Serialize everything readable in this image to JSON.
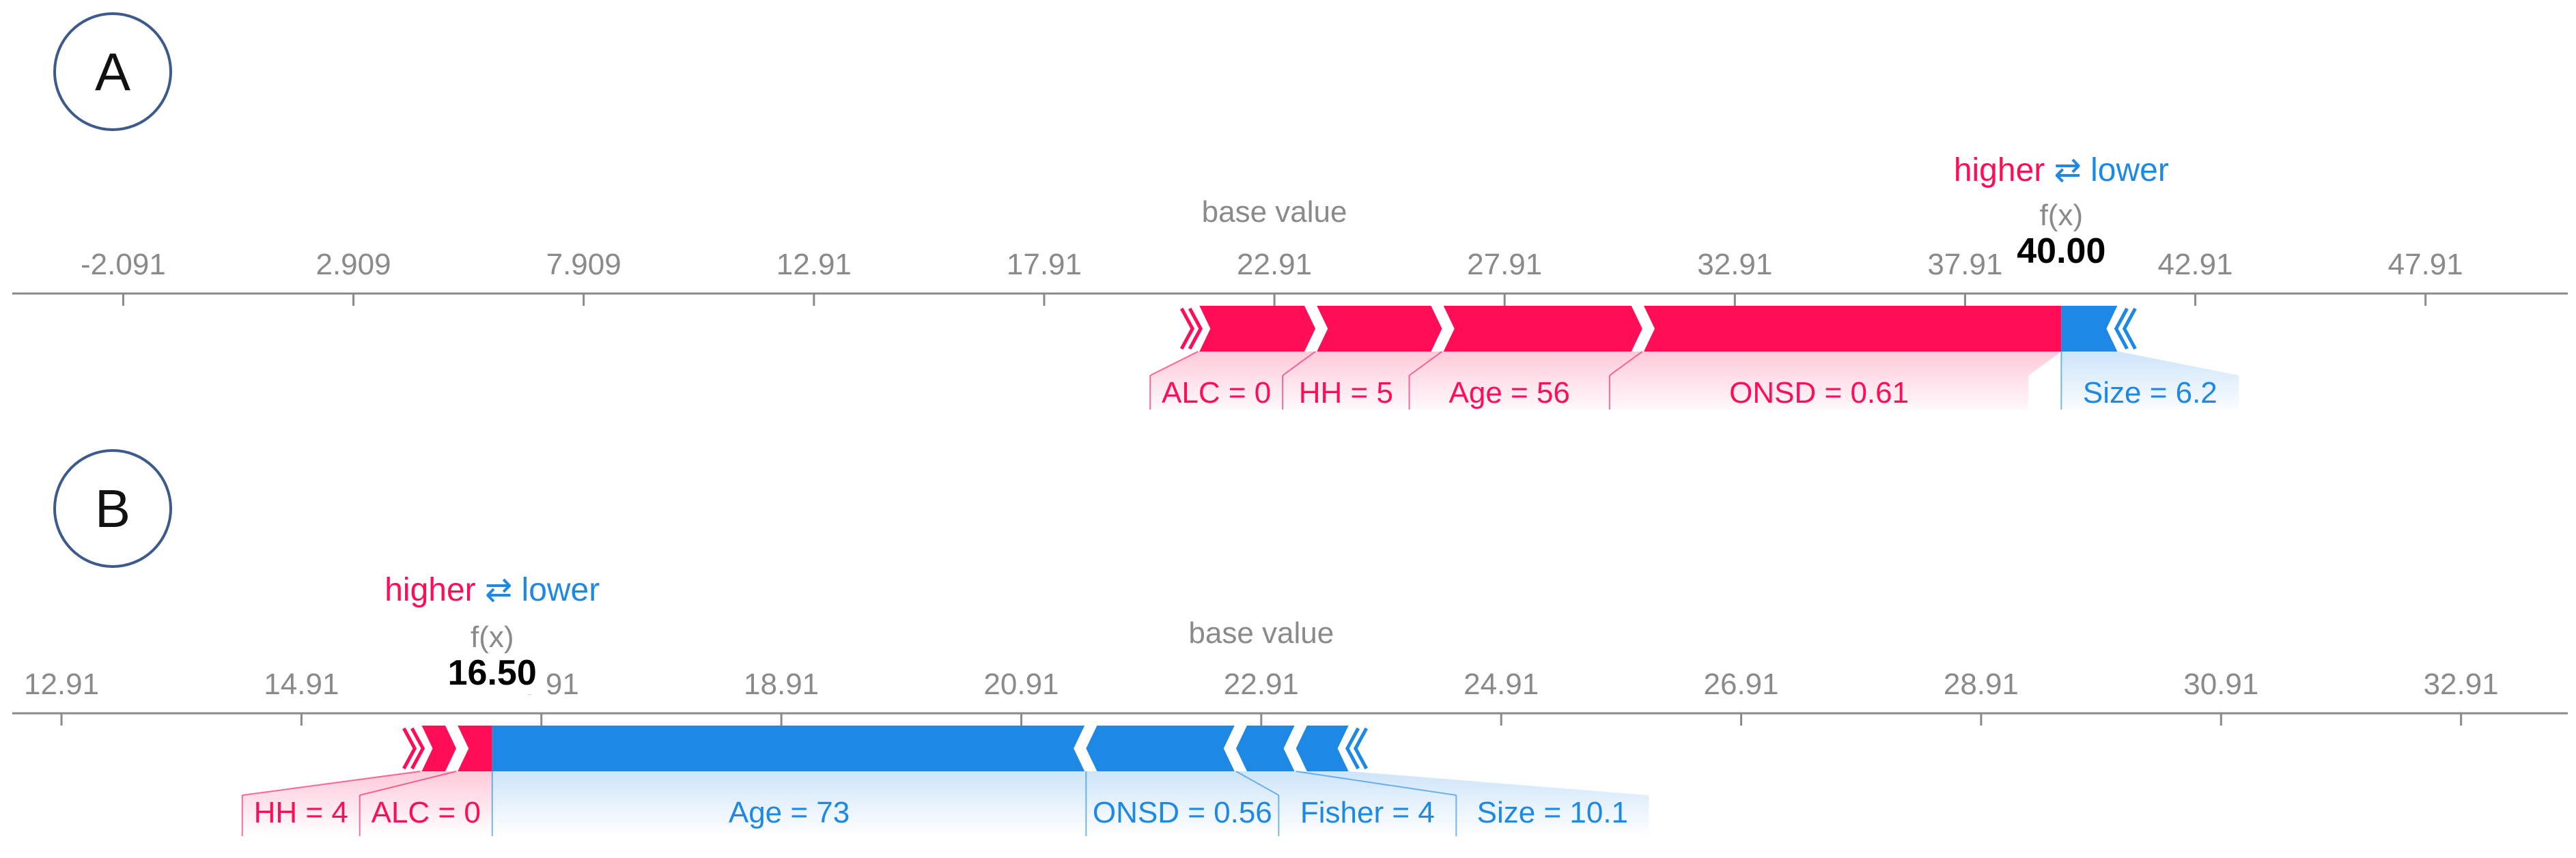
{
  "panels": [
    {
      "label": "A"
    },
    {
      "label": "B"
    }
  ],
  "legend": {
    "higher": "higher",
    "arrows": "⇄",
    "lower": "lower"
  },
  "colors": {
    "positive": "#ff0d57",
    "negative": "#1e88e5",
    "axis": "#8a8a8a",
    "text": "#000000"
  },
  "chart_data": [
    {
      "type": "force",
      "panel": "A",
      "base_value": 22.91,
      "base_value_label": "base value",
      "fx_label": "f(x)",
      "fx": 40.0,
      "fx_text": "40.00",
      "xlim": [
        -4.5,
        51
      ],
      "ticks": [
        "-2.091",
        "2.909",
        "7.909",
        "12.91",
        "17.91",
        "22.91",
        "27.91",
        "32.91",
        "37.91",
        "42.91",
        "47.91"
      ],
      "tick_values": [
        -2.091,
        2.909,
        7.909,
        12.91,
        17.91,
        22.91,
        27.91,
        32.91,
        37.91,
        42.91,
        47.91
      ],
      "positive": [
        {
          "label": "ALC = 0",
          "from": 21.25,
          "to": 23.8
        },
        {
          "label": "HH = 5",
          "from": 23.8,
          "to": 26.55
        },
        {
          "label": "Age = 56",
          "from": 26.55,
          "to": 30.9
        },
        {
          "label": "ONSD = 0.61",
          "from": 30.9,
          "to": 40.0
        }
      ],
      "negative": [
        {
          "label": "Size = 6.2",
          "from": 40.0,
          "to": 41.25
        }
      ]
    },
    {
      "type": "force",
      "panel": "B",
      "base_value": 22.91,
      "base_value_label": "base value",
      "fx_label": "f(x)",
      "fx": 16.5,
      "fx_text": "16.50",
      "xlim": [
        12.5,
        33.8
      ],
      "ticks": [
        "12.91",
        "14.91",
        "16.91",
        "18.91",
        "20.91",
        "22.91",
        "24.91",
        "26.91",
        "28.91",
        "30.91",
        "32.91"
      ],
      "tick_values": [
        12.91,
        14.91,
        16.91,
        18.91,
        20.91,
        22.91,
        24.91,
        26.91,
        28.91,
        30.91,
        32.91
      ],
      "positive": [
        {
          "label": "HH = 4",
          "from": 15.9,
          "to": 16.2
        },
        {
          "label": "ALC = 0",
          "from": 16.2,
          "to": 16.5
        }
      ],
      "negative": [
        {
          "label": "Age = 73",
          "from": 16.5,
          "to": 21.45
        },
        {
          "label": "ONSD = 0.56",
          "from": 21.45,
          "to": 22.7
        },
        {
          "label": "Fisher = 4",
          "from": 22.7,
          "to": 23.2
        },
        {
          "label": "Size = 10.1",
          "from": 23.2,
          "to": 23.65
        }
      ]
    }
  ]
}
